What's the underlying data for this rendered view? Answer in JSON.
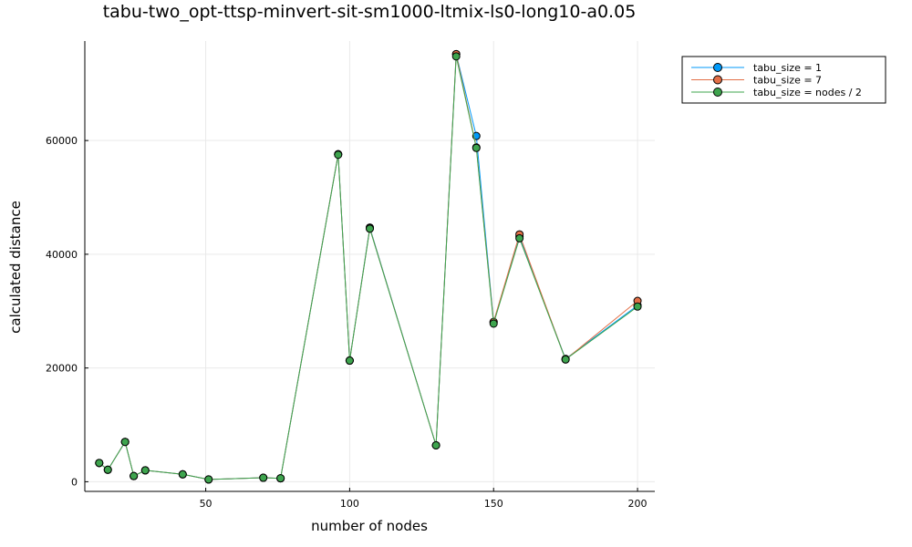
{
  "chart_data": {
    "type": "line",
    "title": "tabu-two_opt-ttsp-minvert-sit-sm1000-ltmix-ls0-long10-a0.05",
    "xlabel": "number of nodes",
    "ylabel": "calculated distance",
    "xlim": [
      8,
      206
    ],
    "ylim": [
      -1700,
      77500
    ],
    "xticks": [
      50,
      100,
      150,
      200
    ],
    "yticks": [
      0,
      20000,
      40000,
      60000
    ],
    "grid": true,
    "legend_position": "top-right-outside",
    "x": [
      13,
      16,
      22,
      25,
      29,
      42,
      51,
      70,
      76,
      96,
      100,
      107,
      130,
      137,
      144,
      150,
      159,
      175,
      200
    ],
    "series": [
      {
        "name": "tabu_size = 1",
        "color": "#009AFA",
        "values": [
          3300,
          2100,
          7000,
          1000,
          2000,
          1300,
          400,
          700,
          600,
          57600,
          21300,
          44700,
          6400,
          75200,
          60800,
          28100,
          43100,
          21600,
          31000
        ]
      },
      {
        "name": "tabu_size = 7",
        "color": "#E36F47",
        "values": [
          3300,
          2100,
          7000,
          1000,
          2000,
          1300,
          400,
          700,
          600,
          57600,
          21300,
          44600,
          6400,
          75200,
          58800,
          28100,
          43500,
          21500,
          31800
        ]
      },
      {
        "name": "tabu_size = nodes / 2",
        "color": "#3EA44E",
        "values": [
          3300,
          2100,
          7000,
          1000,
          2000,
          1300,
          400,
          700,
          600,
          57500,
          21300,
          44500,
          6400,
          74800,
          58700,
          27800,
          42800,
          21500,
          30800
        ]
      }
    ]
  }
}
